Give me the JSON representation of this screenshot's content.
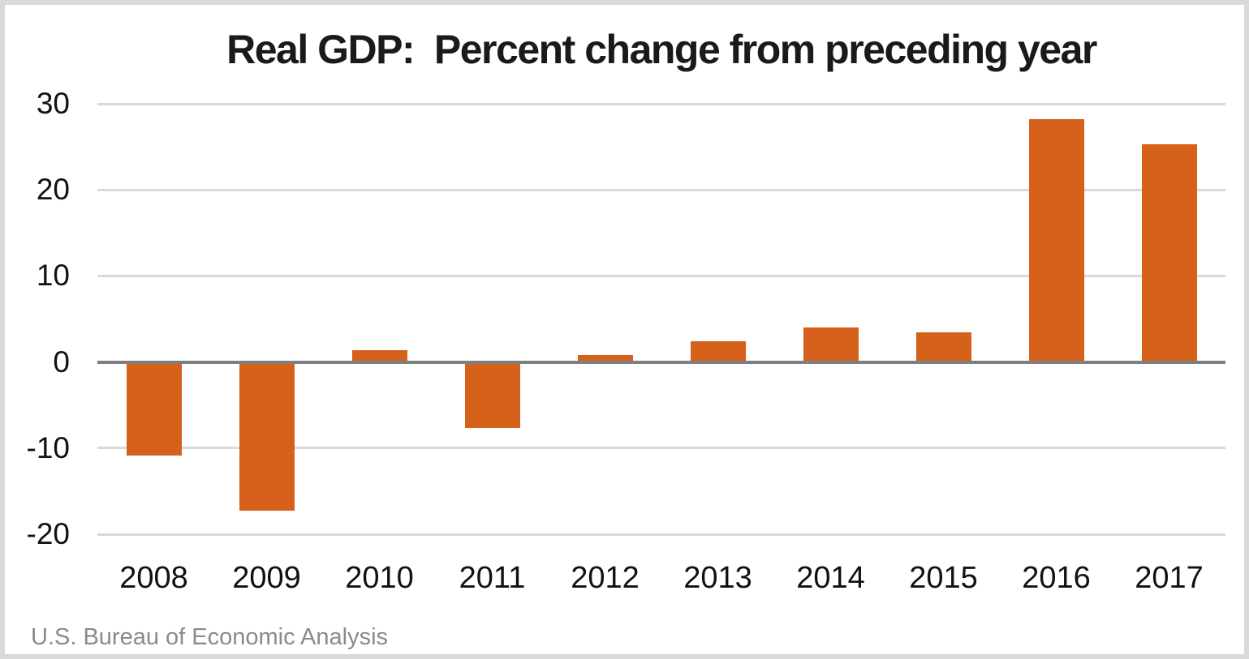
{
  "chart_data": {
    "type": "bar",
    "title": "Real GDP:  Percent change from preceding year",
    "categories": [
      "2008",
      "2009",
      "2010",
      "2011",
      "2012",
      "2013",
      "2014",
      "2015",
      "2016",
      "2017"
    ],
    "values": [
      -10.9,
      -17.3,
      1.4,
      -7.7,
      0.8,
      2.4,
      4.0,
      3.4,
      28.2,
      25.3
    ],
    "xlabel": "",
    "ylabel": "",
    "ylim": [
      -20,
      30
    ],
    "yticks": [
      30,
      20,
      10,
      0,
      -10,
      -20
    ],
    "gridlines": "horizontal",
    "legend": "none",
    "bar_color": "#d5611a",
    "gridline_color": "#d9d9d9",
    "zero_line_color": "#7f7f7f",
    "source": "U.S. Bureau of Economic Analysis"
  }
}
